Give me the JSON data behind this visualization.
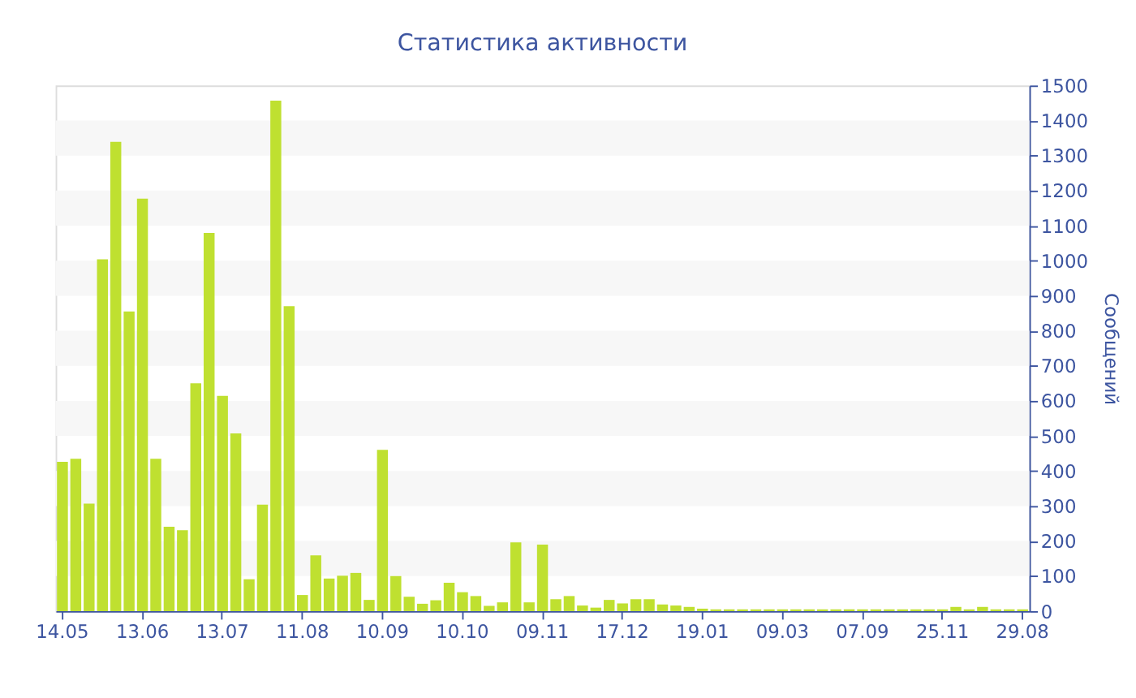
{
  "chart_data": {
    "type": "bar",
    "title": "Статистика активности",
    "ylabel": "Сообщений",
    "categories": [
      "14.05",
      null,
      null,
      null,
      null,
      null,
      "13.06",
      null,
      null,
      null,
      null,
      null,
      "13.07",
      null,
      null,
      null,
      null,
      null,
      "11.08",
      null,
      null,
      null,
      null,
      null,
      "10.09",
      null,
      null,
      null,
      null,
      null,
      "10.10",
      null,
      null,
      null,
      null,
      null,
      "09.11",
      null,
      null,
      null,
      null,
      null,
      "17.12",
      null,
      null,
      null,
      null,
      null,
      "19.01",
      null,
      null,
      null,
      null,
      null,
      "09.03",
      null,
      null,
      null,
      null,
      null,
      "07.09",
      null,
      null,
      null,
      null,
      null,
      "25.11",
      null,
      null,
      null,
      null,
      null,
      "29.08"
    ],
    "values": [
      426,
      435,
      307,
      1004,
      1339,
      855,
      1177,
      435,
      241,
      231,
      650,
      1079,
      614,
      507,
      91,
      304,
      1457,
      870,
      46,
      159,
      93,
      101,
      109,
      32,
      460,
      100,
      41,
      21,
      31,
      81,
      54,
      43,
      15,
      25,
      196,
      25,
      190,
      34,
      43,
      16,
      10,
      32,
      22,
      34,
      34,
      19,
      16,
      12,
      7,
      5,
      5,
      5,
      5,
      5,
      5,
      5,
      5,
      5,
      5,
      5,
      5,
      5,
      5,
      5,
      5,
      5,
      5,
      12,
      5,
      12,
      5,
      5,
      5
    ],
    "color": "#bfe030",
    "ylim": [
      0,
      1500
    ],
    "yticks": [
      0,
      100,
      200,
      300,
      400,
      500,
      600,
      700,
      800,
      900,
      1000,
      1100,
      1200,
      1300,
      1400,
      1500
    ],
    "bands": [
      {
        "axis": "y",
        "from": 100,
        "to": 200,
        "color": "#f7f7f7"
      },
      {
        "axis": "y",
        "from": 300,
        "to": 400,
        "color": "#f7f7f7"
      },
      {
        "axis": "y",
        "from": 500,
        "to": 600,
        "color": "#f7f7f7"
      },
      {
        "axis": "y",
        "from": 700,
        "to": 800,
        "color": "#f7f7f7"
      },
      {
        "axis": "y",
        "from": 900,
        "to": 1000,
        "color": "#f7f7f7"
      },
      {
        "axis": "y",
        "from": 1100,
        "to": 1200,
        "color": "#f7f7f7"
      },
      {
        "axis": "y",
        "from": 1300,
        "to": 1400,
        "color": "#f7f7f7"
      }
    ]
  }
}
